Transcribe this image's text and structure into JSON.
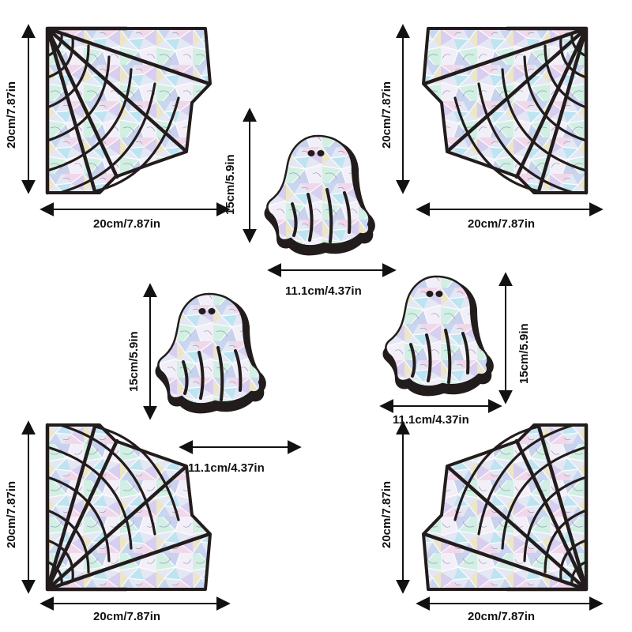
{
  "colors": {
    "outline": "#231c1c",
    "arrow": "#111111",
    "background": "#ffffff",
    "holo": [
      "#dfe6f5",
      "#c7d3ef",
      "#b9e2f0",
      "#f1d6e8",
      "#e9e3c6",
      "#d6ccef",
      "#cfeee2",
      "#f3f0f8"
    ]
  },
  "decals": {
    "web_corner": {
      "width": "20cm/7.87in",
      "height": "20cm/7.87in"
    },
    "ghost": {
      "width": "11.1cm/4.37in",
      "height": "15cm/5.9in"
    }
  },
  "labels": {
    "web_top_left_width": "20cm/7.87in",
    "web_top_left_height": "20cm/7.87in",
    "web_top_right_width": "20cm/7.87in",
    "web_top_right_height": "20cm/7.87in",
    "web_bottom_left_width": "20cm/7.87in",
    "web_bottom_left_height": "20cm/7.87in",
    "web_bottom_right_width": "20cm/7.87in",
    "web_bottom_right_height": "20cm/7.87in",
    "ghost_top_width": "11.1cm/4.37in",
    "ghost_top_height": "15cm/5.9in",
    "ghost_left_width": "11.1cm/4.37in",
    "ghost_left_height": "15cm/5.9in",
    "ghost_right_width": "11.1cm/4.37in",
    "ghost_right_height": "15cm/5.9in"
  }
}
